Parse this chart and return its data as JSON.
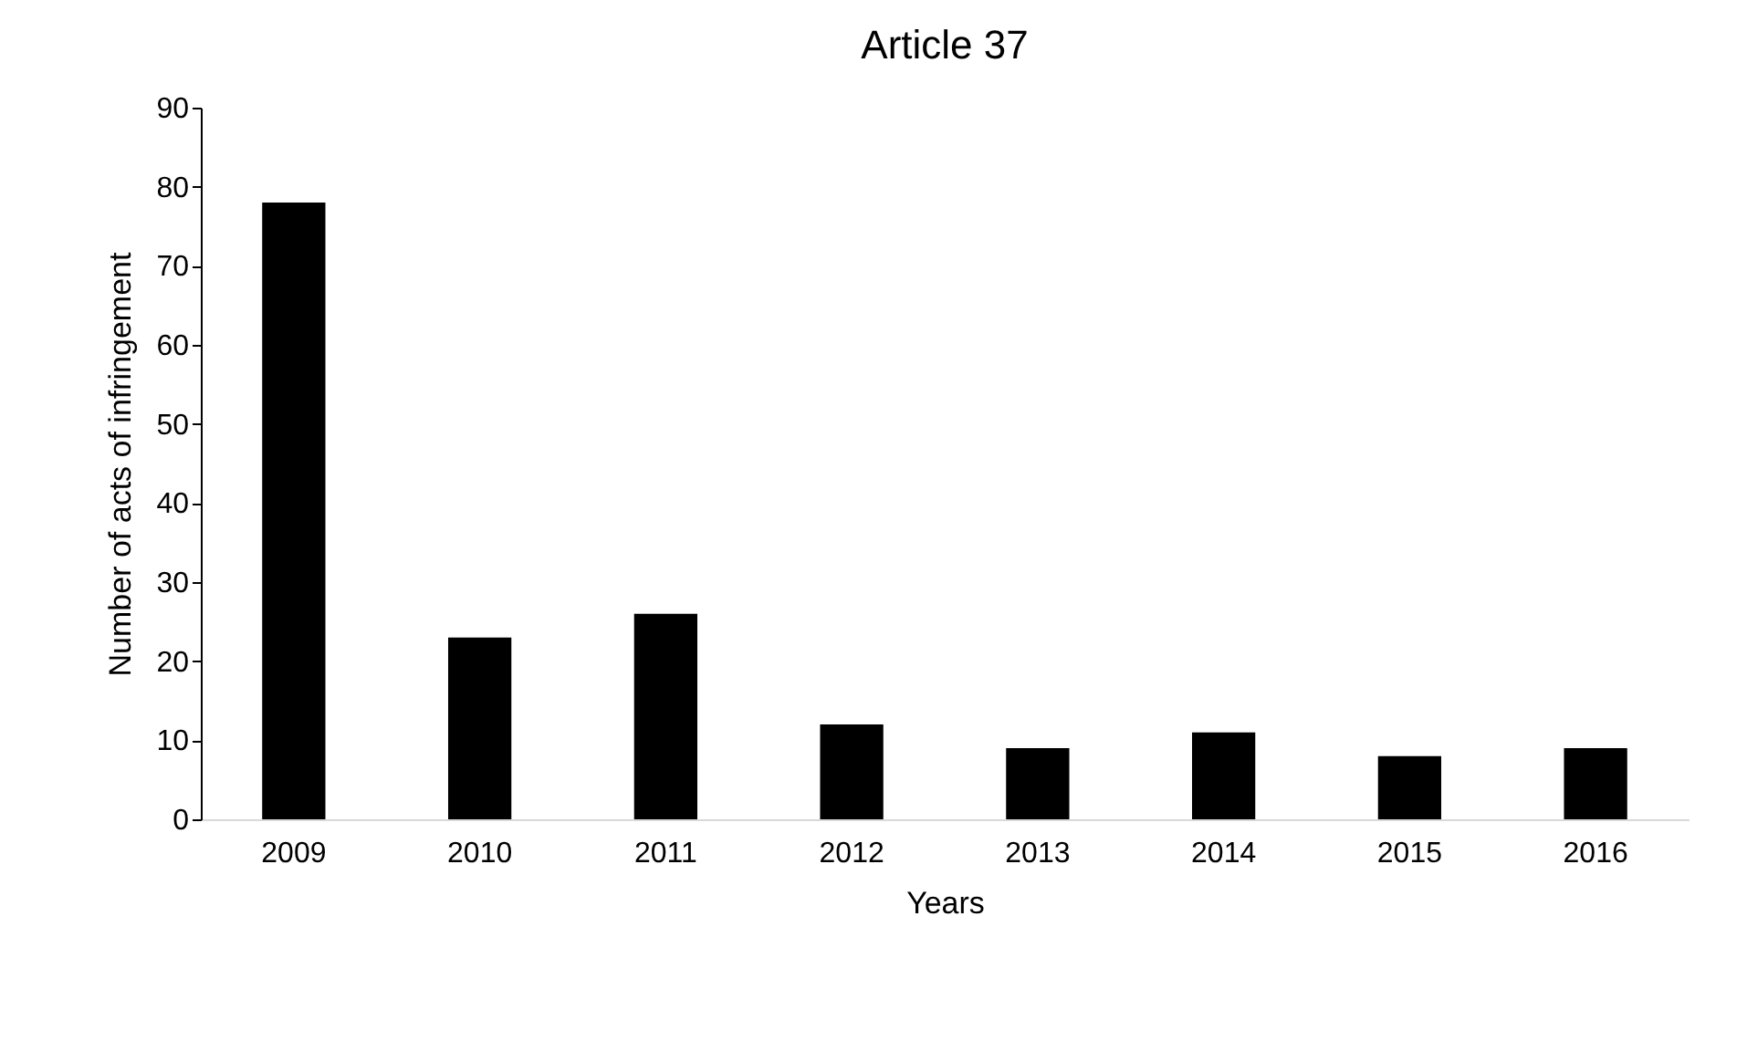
{
  "chart_data": {
    "type": "bar",
    "title": "Article 37",
    "xlabel": "Years",
    "ylabel": "Number of acts of infringement",
    "categories": [
      "2009",
      "2010",
      "2011",
      "2012",
      "2013",
      "2014",
      "2015",
      "2016"
    ],
    "values": [
      78,
      23,
      26,
      12,
      9,
      11,
      8,
      9
    ],
    "color": "#000000",
    "ylim": [
      0,
      90
    ],
    "yticks": [
      0,
      10,
      20,
      30,
      40,
      50,
      60,
      70,
      80,
      90
    ],
    "grid": false
  }
}
